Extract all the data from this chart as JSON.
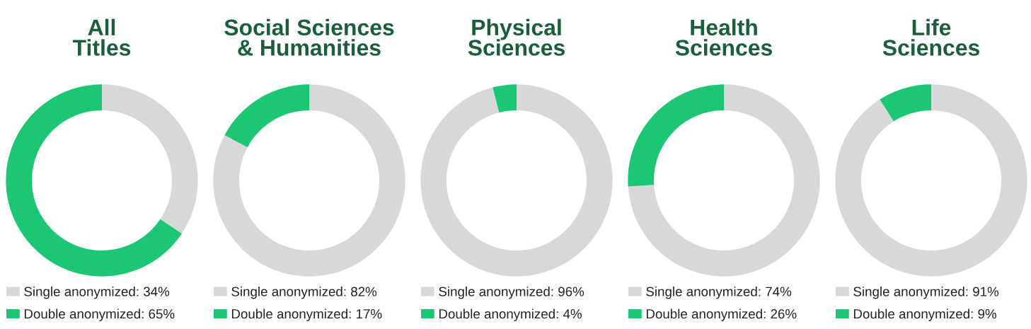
{
  "chart_data": [
    {
      "type": "donut",
      "title": "All\nTitles",
      "categories": [
        "Single anonymized",
        "Double anonymized"
      ],
      "values": [
        34,
        65
      ],
      "value_labels": [
        "34%",
        "65%"
      ],
      "colors": [
        "#d7d8da",
        "#1cc774"
      ],
      "legend": "bottom"
    },
    {
      "type": "donut",
      "title": "Social Sciences\n& Humanities",
      "categories": [
        "Single anonymized",
        "Double anonymized"
      ],
      "values": [
        82,
        17
      ],
      "value_labels": [
        "82%",
        "17%"
      ],
      "colors": [
        "#d7d8da",
        "#1cc774"
      ],
      "legend": "bottom"
    },
    {
      "type": "donut",
      "title": "Physical\nSciences",
      "categories": [
        "Single anonymized",
        "Double anonymized"
      ],
      "values": [
        96,
        4
      ],
      "value_labels": [
        "96%",
        "4%"
      ],
      "colors": [
        "#d7d8da",
        "#1cc774"
      ],
      "legend": "bottom"
    },
    {
      "type": "donut",
      "title": "Health\nSciences",
      "categories": [
        "Single anonymized",
        "Double anonymized"
      ],
      "values": [
        74,
        26
      ],
      "value_labels": [
        "74%",
        "26%"
      ],
      "colors": [
        "#d7d8da",
        "#1cc774"
      ],
      "legend": "bottom"
    },
    {
      "type": "donut",
      "title": "Life\nSciences",
      "categories": [
        "Single anonymized",
        "Double anonymized"
      ],
      "values": [
        91,
        9
      ],
      "value_labels": [
        "91%",
        "9%"
      ],
      "colors": [
        "#d7d8da",
        "#1cc774"
      ],
      "legend": "bottom"
    }
  ]
}
